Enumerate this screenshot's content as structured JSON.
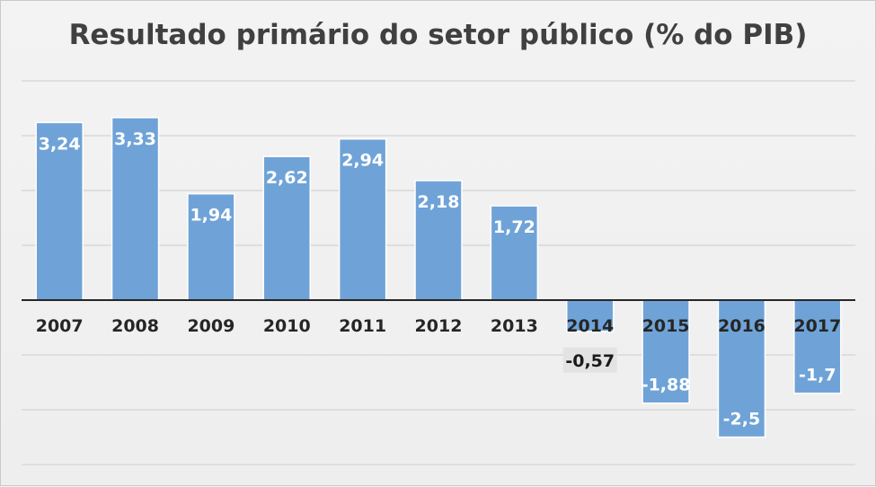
{
  "chart_data": {
    "type": "bar",
    "title": "Resultado primário do setor público (% do PIB)",
    "categories": [
      "2007",
      "2008",
      "2009",
      "2010",
      "2011",
      "2012",
      "2013",
      "2014",
      "2015",
      "2016",
      "2017"
    ],
    "values": [
      3.24,
      3.33,
      1.94,
      2.62,
      2.94,
      2.18,
      1.72,
      -0.57,
      -1.88,
      -2.5,
      -1.7
    ],
    "data_labels": [
      "3,24",
      "3,33",
      "1,94",
      "2,62",
      "2,94",
      "2,18",
      "1,72",
      "-0,57",
      "-1,88",
      "-2,5",
      "-1,7"
    ],
    "xlabel": "",
    "ylabel": "",
    "ylim": [
      -3,
      4
    ],
    "grid": true,
    "legend": "none",
    "bar_color": "#6fa3d8"
  }
}
